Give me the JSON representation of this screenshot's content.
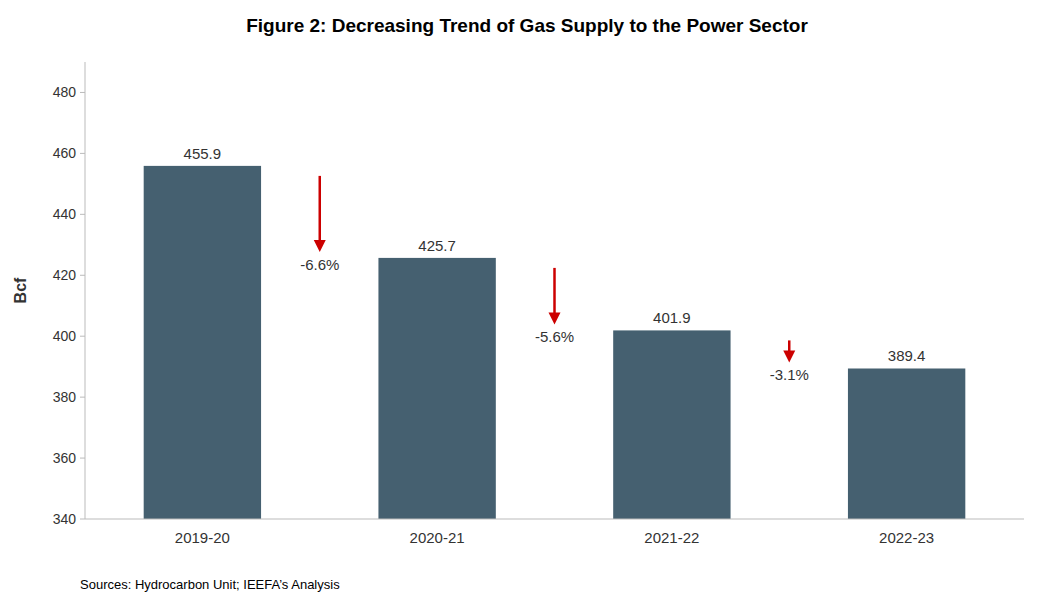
{
  "chart_data": {
    "type": "bar",
    "title": "Figure 2: Decreasing Trend of Gas Supply to the Power Sector",
    "categories": [
      "2019-20",
      "2020-21",
      "2021-22",
      "2022-23"
    ],
    "values": [
      455.9,
      425.7,
      401.9,
      389.4
    ],
    "color": "#456070",
    "y_label": "Bcf",
    "ylim": [
      340,
      490
    ],
    "yticks": [
      340,
      360,
      380,
      400,
      420,
      440,
      460,
      480
    ],
    "grid": false,
    "data_labels": true,
    "annotations": [
      {
        "text": "-6.6%",
        "color": "#cc0000"
      },
      {
        "text": "-5.6%",
        "color": "#cc0000"
      },
      {
        "text": "-3.1%",
        "color": "#cc0000"
      }
    ],
    "source": "Sources: Hydrocarbon Unit; IEEFA’s Analysis"
  }
}
